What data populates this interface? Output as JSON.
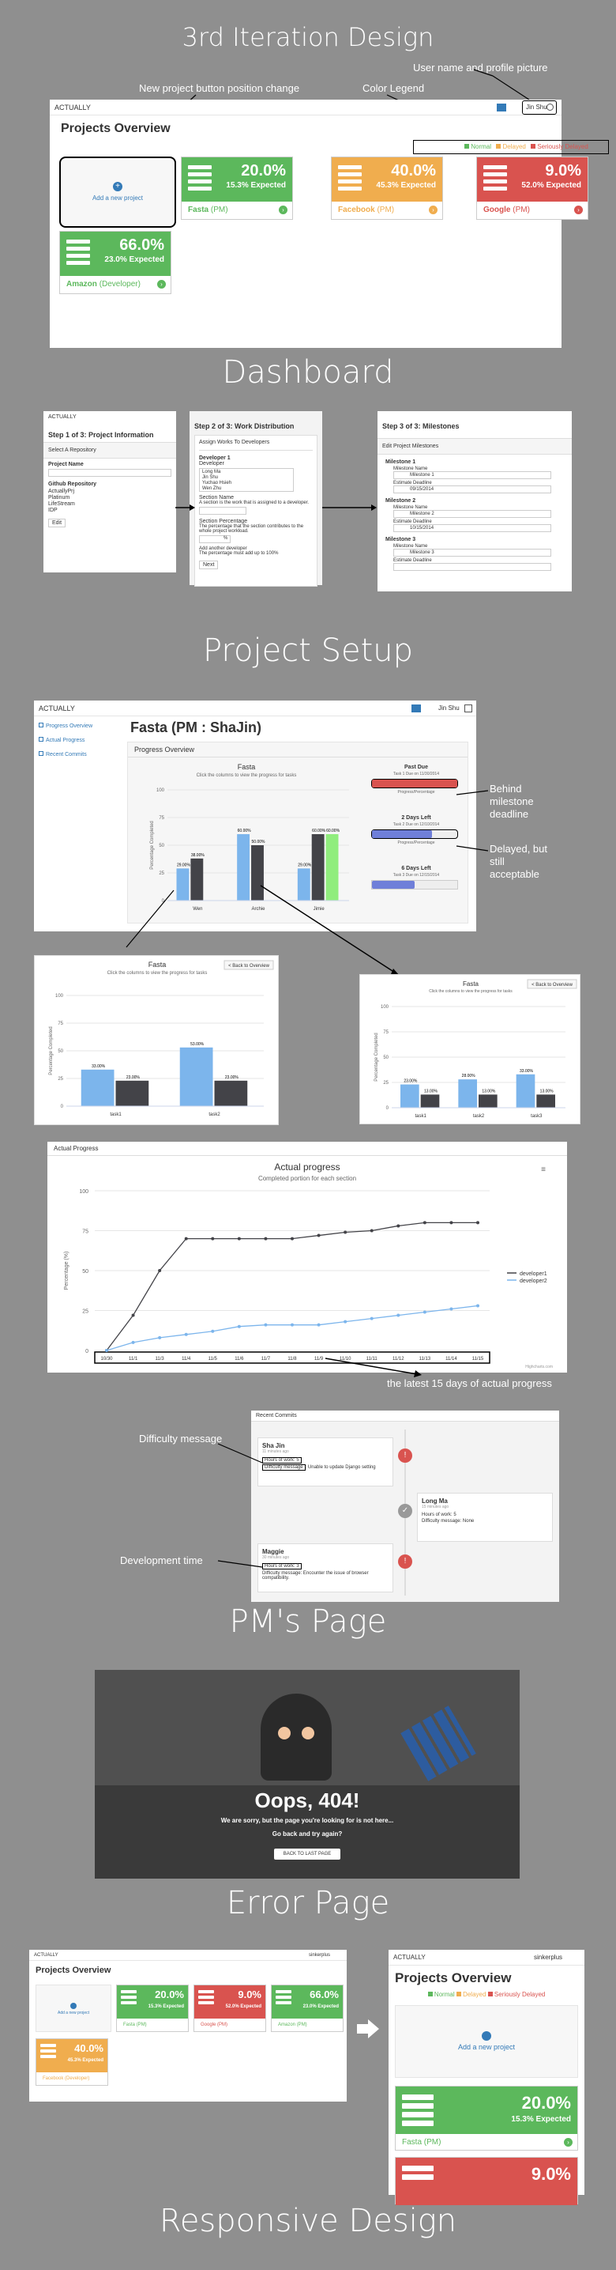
{
  "headings": {
    "main": "3rd Iteration Design",
    "dashboard": "Dashboard",
    "setup": "Project Setup",
    "pm": "PM's Page",
    "error": "Error Page",
    "responsive": "Responsive Design"
  },
  "annotations": {
    "user_profile": "User name and profile picture",
    "new_project": "New project button position change",
    "legend": "Color Legend",
    "behind": "Behind milestone deadline",
    "delayed": "Delayed, but still acceptable",
    "latest": "the latest 15 days of actual progress",
    "difficulty": "Difficulty message",
    "devtime": "Development time"
  },
  "dashboard": {
    "brand": "ACTUALLY",
    "title": "Projects Overview",
    "user": "Jin Shu",
    "legend": [
      "Normal",
      "Delayed",
      "Seriously Delayed"
    ],
    "add_project": "Add a new project",
    "cards": [
      {
        "pct": "20.0%",
        "exp": "15.3% Expected",
        "name": "Fasta",
        "role": "(PM)",
        "color": "#5cb85c"
      },
      {
        "pct": "40.0%",
        "exp": "45.3% Expected",
        "name": "Facebook",
        "role": "(PM)",
        "color": "#f0ad4e"
      },
      {
        "pct": "9.0%",
        "exp": "52.0% Expected",
        "name": "Google",
        "role": "(PM)",
        "color": "#d9534f"
      },
      {
        "pct": "66.0%",
        "exp": "23.0% Expected",
        "name": "Amazon",
        "role": "(Developer)",
        "color": "#5cb85c"
      }
    ]
  },
  "setup": {
    "brand": "ACTUALLY",
    "step1": {
      "title": "Step 1 of 3: Project Information",
      "sub": "Select A Repository",
      "f1": "Project Name",
      "f2": "Github Repository",
      "repos": [
        "ActuallyPrj",
        "Platinum",
        "LifeStream",
        "IDP"
      ],
      "btn": "Edit"
    },
    "step2": {
      "title": "Step 2 of 3: Work Distribution",
      "sub": "Assign Works To Developers",
      "dev": "Developer 1",
      "devlbl": "Developer",
      "names": [
        "Long Ma",
        "Jin Shu",
        "Yuchao Hsieh",
        "Wen Zhu"
      ],
      "secname": "Section Name",
      "secdesc": "A section is the work that is assigned to a developer.",
      "secpct": "Section Percentage",
      "secpctdesc": "The percentage that the section contributes to the whole project workload.",
      "pctval": "%",
      "addsec": "Add another developer",
      "must": "The percentage must add up to 100%",
      "btn": "Next"
    },
    "step3": {
      "title": "Step 3 of 3: Milestones",
      "sub": "Edit Project Milestones",
      "ms": [
        {
          "h": "Milestone 1",
          "n": "Milestone Name",
          "v": "Milestone 1",
          "d": "Estimate Deadline",
          "dv": "09/15/2014"
        },
        {
          "h": "Milestone 2",
          "n": "Milestone Name",
          "v": "Milestone 2",
          "d": "Estimate Deadline",
          "dv": "10/15/2014"
        },
        {
          "h": "Milestone 3",
          "n": "Milestone Name",
          "v": "Milestone 3",
          "d": "Estimate Deadline",
          "dv": ""
        }
      ]
    }
  },
  "pm": {
    "brand": "ACTUALLY",
    "user": "Jin Shu",
    "side": [
      "Progress Overview",
      "Actual Progress",
      "Recent Commits"
    ],
    "title": "Fasta (PM : ShaJin)",
    "panel": "Progress Overview",
    "chart_title": "Fasta",
    "chart_sub": "Click the columns to view the progress for tasks",
    "ylabel": "Percentage Completed",
    "ms": [
      {
        "t": "Past Due",
        "s": "Task 1 Due on 11/30/2014",
        "lbl": "Progress/Percentage"
      },
      {
        "t": "2 Days Left",
        "s": "Task 2 Due on 12/10/2014",
        "lbl": "Progress/Percentage"
      },
      {
        "t": "6 Days Left",
        "s": "Task 3 Due on 12/15/2014",
        "lbl": ""
      }
    ],
    "back": "< Back to Overview",
    "actual_panel": "Actual Progress",
    "actual_title": "Actual progress",
    "actual_sub": "Completed portion for each section",
    "credit": "Highcharts.com",
    "legend2": [
      "developer1",
      "developer2"
    ],
    "commits_panel": "Recent Commits",
    "commits": [
      {
        "name": "Sha Jin",
        "time": "11 minutes ago",
        "hours": "Hours of work: 5",
        "diff": "Difficulty message",
        "msg": ": Unable to update Django setting"
      },
      {
        "name": "Long Ma",
        "time": "15 minutes ago",
        "hours": "Hours of work: 5",
        "diff": "Difficulty message: None",
        "msg": ""
      },
      {
        "name": "Maggie",
        "time": "30 minutes ago",
        "hours": "Hours of work: 3",
        "diff": "Difficulty message: Encounter the issue of browser compatibility.",
        "msg": ""
      }
    ]
  },
  "error": {
    "big": "Oops, 404!",
    "line1": "We are sorry, but the page you're looking for is not here...",
    "line2": "Go back and try again?",
    "btn": "BACK TO LAST PAGE"
  },
  "responsive": {
    "brand": "ACTUALLY",
    "title": "Projects Overview",
    "user": "sinkerplus",
    "add": "Add a new project",
    "cards": [
      {
        "pct": "20.0%",
        "exp": "15.3% Expected",
        "name": "Fasta",
        "role": "(PM)",
        "color": "#5cb85c"
      },
      {
        "pct": "9.0%",
        "exp": "52.0% Expected",
        "name": "Google",
        "role": "(PM)",
        "color": "#d9534f"
      },
      {
        "pct": "66.0%",
        "exp": "23.0% Expected",
        "name": "Amazon",
        "role": "(PM)",
        "color": "#5cb85c"
      },
      {
        "pct": "40.0%",
        "exp": "45.3% Expected",
        "name": "Facebook",
        "role": "(Developer)",
        "color": "#f0ad4e"
      }
    ]
  },
  "chart_data": [
    {
      "type": "bar",
      "title": "Fasta",
      "subtitle": "Click the columns to view the progress for tasks",
      "ylabel": "Percentage Completed",
      "ylim": [
        0,
        100
      ],
      "categories": [
        "Wen",
        "Archie",
        "Jimie"
      ],
      "series": [
        {
          "values": [
            29.0,
            60.0,
            29.0
          ],
          "color": "#7cb5ec"
        },
        {
          "values": [
            38.0,
            50.0,
            60.0
          ],
          "color": "#434348"
        },
        {
          "values": [
            0,
            0,
            60.0
          ],
          "color": "#90ed7d"
        }
      ]
    },
    {
      "type": "bar",
      "title": "Fasta",
      "subtitle": "Click the columns to view the progress for tasks",
      "ylabel": "Percentage Completed",
      "ylim": [
        0,
        100
      ],
      "categories": [
        "task1",
        "task2"
      ],
      "series": [
        {
          "values": [
            33.0,
            53.0
          ]
        },
        {
          "values": [
            23.0,
            23.0
          ]
        }
      ]
    },
    {
      "type": "bar",
      "title": "Fasta",
      "subtitle": "Click the columns to view the progress for tasks",
      "ylabel": "Percentage Completed",
      "ylim": [
        0,
        100
      ],
      "categories": [
        "task1",
        "task2",
        "task3"
      ],
      "series": [
        {
          "values": [
            23.0,
            28.0,
            33.0
          ]
        },
        {
          "values": [
            13.0,
            13.0,
            13.0
          ]
        }
      ]
    },
    {
      "type": "line",
      "title": "Actual progress",
      "subtitle": "Completed portion for each section",
      "ylabel": "Percentage (%)",
      "ylim": [
        0,
        100
      ],
      "x": [
        "10/30",
        "11/1",
        "11/3",
        "11/4",
        "11/5",
        "11/6",
        "11/7",
        "11/8",
        "11/9",
        "11/10",
        "11/11",
        "11/12",
        "11/13",
        "11/14",
        "11/15"
      ],
      "series": [
        {
          "name": "developer1",
          "values": [
            0,
            22,
            50,
            70,
            70,
            70,
            70,
            70,
            72,
            74,
            75,
            78,
            80,
            80,
            80
          ]
        },
        {
          "name": "developer2",
          "values": [
            0,
            5,
            8,
            10,
            12,
            15,
            16,
            16,
            16,
            18,
            20,
            22,
            24,
            26,
            28
          ]
        }
      ]
    }
  ]
}
